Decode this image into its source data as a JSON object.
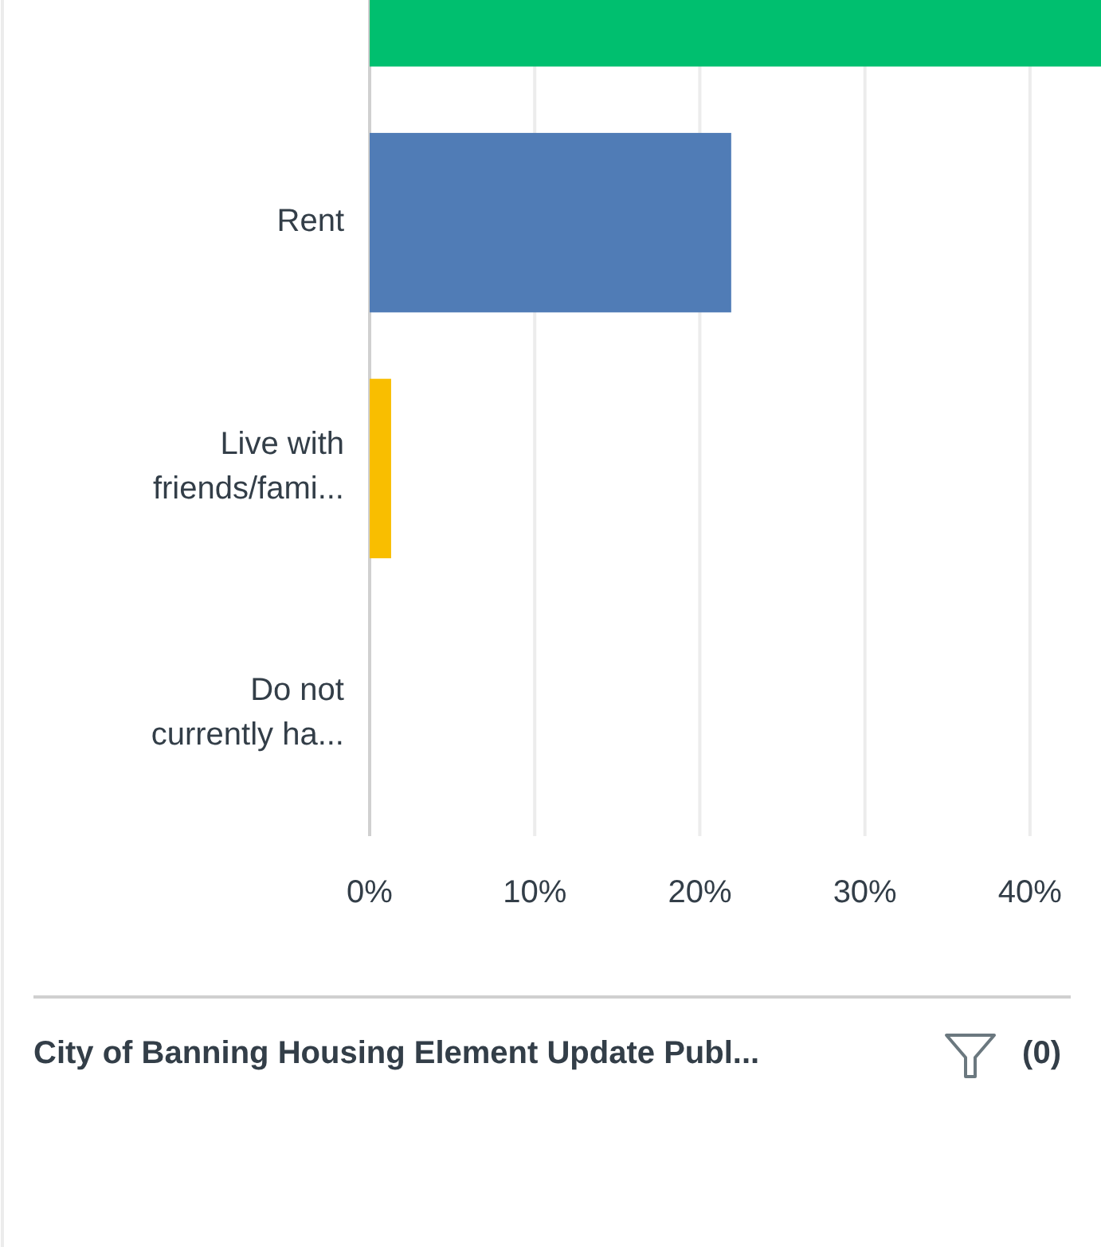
{
  "chart_data": {
    "type": "bar",
    "orientation": "horizontal",
    "categories": [
      null,
      "Rent",
      "Live with friends/fami...",
      "Do not currently ha..."
    ],
    "values": [
      44.3,
      21.9,
      1.3,
      0
    ],
    "colors": [
      "#00bf6f",
      "#507cb6",
      "#f9be00",
      "#e05e4f"
    ],
    "xlim": [
      0,
      44.3
    ],
    "xticks": [
      {
        "value": 0,
        "label": "0%"
      },
      {
        "value": 10,
        "label": "10%"
      },
      {
        "value": 20,
        "label": "20%"
      },
      {
        "value": 30,
        "label": "30%"
      },
      {
        "value": 40,
        "label": "40%"
      }
    ],
    "grid": "x",
    "annotations": [
      "City of Banning Housing Element Update Publ...",
      "(0)"
    ]
  }
}
